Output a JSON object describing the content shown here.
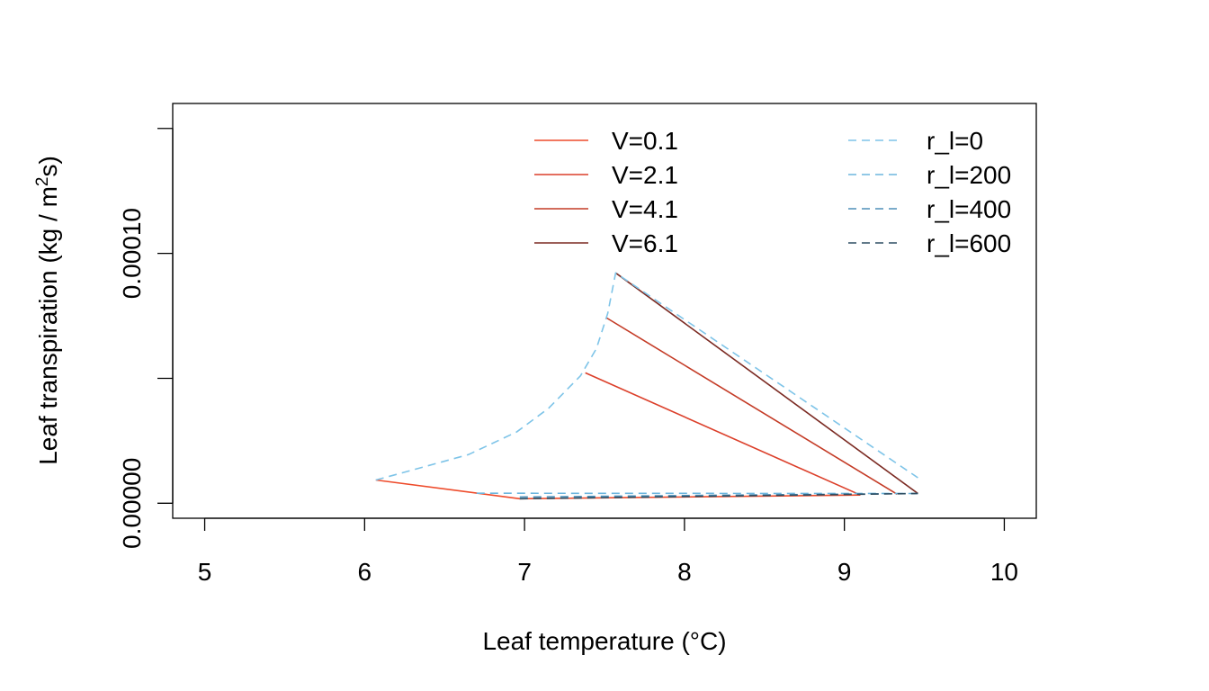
{
  "chart_data": {
    "type": "line",
    "title": "",
    "xlabel": "Leaf temperature (°C)",
    "ylabel": "Leaf transpiration (kg / m²s)",
    "ylabel_parts": {
      "main": "Leaf transpiration (kg / m",
      "sup": "2",
      "end": "s)"
    },
    "xlim": [
      4.8,
      10.2
    ],
    "ylim": [
      -6e-06,
      0.00016
    ],
    "x_ticks": [
      5,
      6,
      7,
      8,
      9,
      10
    ],
    "x_tick_labels": [
      "5",
      "6",
      "7",
      "8",
      "9",
      "10"
    ],
    "y_ticks": [
      0,
      5e-05,
      0.0001,
      0.00015
    ],
    "y_tick_labels": [
      "0.00000",
      "",
      "0.00010",
      ""
    ],
    "grid": false,
    "legend_placement": "top-right",
    "series": [
      {
        "name": "V=0.1",
        "group": "wind",
        "style": "solid",
        "color": "#EE4B2B",
        "x": [
          6.07,
          6.97,
          9.1
        ],
        "y": [
          9.3e-06,
          1.8e-06,
          3.3e-06
        ]
      },
      {
        "name": "V=2.1",
        "group": "wind",
        "style": "solid",
        "color": "#DC3F2A",
        "x": [
          7.38,
          9.1
        ],
        "y": [
          5.22e-05,
          3.3e-06
        ]
      },
      {
        "name": "V=4.1",
        "group": "wind",
        "style": "solid",
        "color": "#C43B26",
        "x": [
          7.51,
          9.33
        ],
        "y": [
          7.43e-05,
          3.6e-06
        ]
      },
      {
        "name": "V=6.1",
        "group": "wind",
        "style": "solid",
        "color": "#7B2A22",
        "x": [
          7.57,
          9.46
        ],
        "y": [
          9.22e-05,
          3.9e-06
        ]
      },
      {
        "name": "r_l=0",
        "group": "resistance",
        "style": "dashed",
        "color": "#7EC4E8",
        "x": [
          6.07,
          6.35,
          6.65,
          6.95,
          7.15,
          7.35,
          7.45,
          7.52,
          7.57,
          9.46
        ],
        "y": [
          9.3e-06,
          1.42e-05,
          1.95e-05,
          2.85e-05,
          3.8e-05,
          5.1e-05,
          6.2e-05,
          7.6e-05,
          9.22e-05,
          1.02e-05
        ]
      },
      {
        "name": "r_l=200",
        "group": "resistance",
        "style": "dashed",
        "color": "#6DB6DE",
        "x": [
          6.7,
          9.46
        ],
        "y": [
          4e-06,
          3.9e-06
        ]
      },
      {
        "name": "r_l=400",
        "group": "resistance",
        "style": "dashed",
        "color": "#4E8FB8",
        "x": [
          6.97,
          9.46
        ],
        "y": [
          2.5e-06,
          3.9e-06
        ]
      },
      {
        "name": "r_l=600",
        "group": "resistance",
        "style": "dashed",
        "color": "#2F4F63",
        "x": [
          6.97,
          9.46
        ],
        "y": [
          1.8e-06,
          3.9e-06
        ]
      }
    ]
  }
}
